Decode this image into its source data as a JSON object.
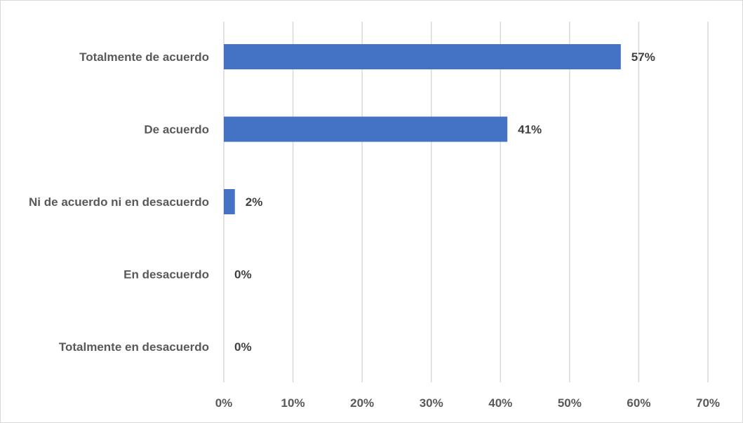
{
  "chart_data": {
    "type": "bar",
    "orientation": "horizontal",
    "categories": [
      "Totalmente de acuerdo",
      "De acuerdo",
      "Ni de acuerdo ni en desacuerdo",
      "En desacuerdo",
      "Totalmente en desacuerdo"
    ],
    "values": [
      57.4,
      41,
      1.6,
      0,
      0
    ],
    "data_labels": [
      "57%",
      "41%",
      "2%",
      "0%",
      "0%"
    ],
    "x_ticks": [
      "0%",
      "10%",
      "20%",
      "30%",
      "40%",
      "50%",
      "60%",
      "70%"
    ],
    "xlim": [
      0,
      70
    ],
    "grid": true,
    "legend": "none",
    "colors": {
      "bar": "#4472c4",
      "grid": "#d9d9d9",
      "label_text": "#595959",
      "data_label_text": "#404040"
    }
  }
}
